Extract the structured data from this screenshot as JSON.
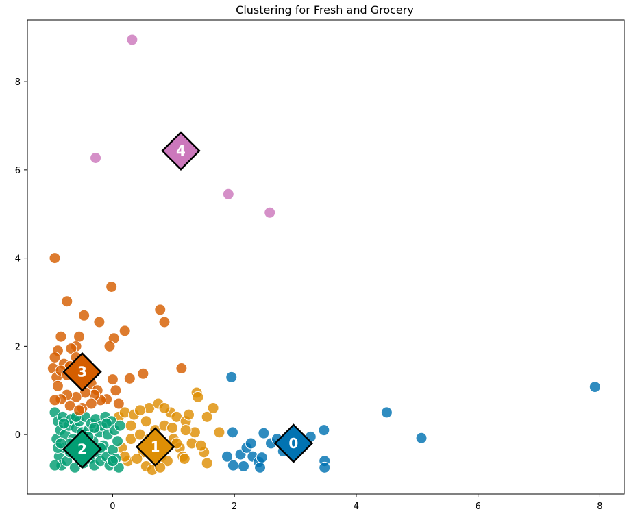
{
  "chart_data": {
    "type": "scatter",
    "title": "Clustering for Fresh and Grocery",
    "xlabel": "",
    "ylabel": "",
    "xlim": [
      -1.4,
      8.4
    ],
    "ylim": [
      -1.35,
      9.4
    ],
    "xticks": [
      0,
      2,
      4,
      6,
      8
    ],
    "yticks": [
      0,
      2,
      4,
      6,
      8
    ],
    "grid": false,
    "colors": [
      "#0173b2",
      "#de8f05",
      "#029e73",
      "#d55e00",
      "#cc78bc"
    ],
    "series": [
      {
        "points": [
          [
            1.95,
            1.3
          ],
          [
            1.97,
            0.05
          ],
          [
            1.88,
            -0.5
          ],
          [
            1.98,
            -0.7
          ],
          [
            2.1,
            -0.45
          ],
          [
            2.15,
            -0.72
          ],
          [
            2.2,
            -0.3
          ],
          [
            2.27,
            -0.2
          ],
          [
            2.3,
            -0.5
          ],
          [
            2.4,
            -0.62
          ],
          [
            2.42,
            -0.75
          ],
          [
            2.45,
            -0.52
          ],
          [
            2.48,
            0.03
          ],
          [
            2.6,
            -0.2
          ],
          [
            2.7,
            -0.1
          ],
          [
            2.8,
            -0.38
          ],
          [
            2.95,
            -0.3
          ],
          [
            3.1,
            -0.2
          ],
          [
            3.25,
            -0.05
          ],
          [
            3.47,
            0.1
          ],
          [
            3.48,
            -0.6
          ],
          [
            3.48,
            -0.75
          ],
          [
            4.5,
            0.5
          ],
          [
            5.07,
            -0.08
          ],
          [
            7.92,
            1.08
          ]
        ]
      },
      {
        "points": [
          [
            0.1,
            0.4
          ],
          [
            0.2,
            0.5
          ],
          [
            0.3,
            -0.1
          ],
          [
            0.35,
            0.45
          ],
          [
            0.45,
            0.0
          ],
          [
            0.5,
            -0.4
          ],
          [
            0.55,
            0.3
          ],
          [
            0.6,
            0.6
          ],
          [
            0.62,
            -0.2
          ],
          [
            0.7,
            0.1
          ],
          [
            0.75,
            0.7
          ],
          [
            0.8,
            -0.5
          ],
          [
            0.85,
            0.2
          ],
          [
            0.9,
            -0.6
          ],
          [
            0.95,
            0.5
          ],
          [
            1.0,
            -0.1
          ],
          [
            1.05,
            0.4
          ],
          [
            1.1,
            -0.3
          ],
          [
            1.15,
            -0.5
          ],
          [
            1.2,
            0.3
          ],
          [
            1.25,
            0.45
          ],
          [
            1.3,
            -0.2
          ],
          [
            1.35,
            0.05
          ],
          [
            1.38,
            0.95
          ],
          [
            1.4,
            0.85
          ],
          [
            1.5,
            -0.4
          ],
          [
            1.55,
            0.4
          ],
          [
            1.65,
            0.6
          ],
          [
            1.75,
            0.05
          ],
          [
            0.25,
            -0.6
          ],
          [
            0.4,
            -0.55
          ],
          [
            0.55,
            -0.72
          ],
          [
            0.65,
            -0.8
          ],
          [
            0.78,
            -0.75
          ],
          [
            0.88,
            -0.3
          ],
          [
            0.98,
            0.15
          ],
          [
            1.18,
            -0.55
          ],
          [
            1.45,
            -0.25
          ],
          [
            1.55,
            -0.65
          ],
          [
            0.15,
            -0.3
          ],
          [
            0.3,
            0.2
          ],
          [
            0.45,
            0.55
          ],
          [
            0.7,
            -0.4
          ],
          [
            1.05,
            -0.2
          ],
          [
            0.6,
            -0.1
          ],
          [
            0.85,
            0.6
          ],
          [
            1.2,
            0.1
          ],
          [
            0.2,
            -0.5
          ]
        ]
      },
      {
        "points": [
          [
            -0.95,
            0.5
          ],
          [
            -0.92,
            -0.1
          ],
          [
            -0.9,
            0.3
          ],
          [
            -0.88,
            -0.5
          ],
          [
            -0.86,
            0.1
          ],
          [
            -0.84,
            -0.7
          ],
          [
            -0.82,
            0.4
          ],
          [
            -0.8,
            -0.3
          ],
          [
            -0.78,
            0.0
          ],
          [
            -0.75,
            -0.6
          ],
          [
            -0.72,
            0.2
          ],
          [
            -0.7,
            -0.4
          ],
          [
            -0.68,
            0.35
          ],
          [
            -0.65,
            -0.1
          ],
          [
            -0.62,
            -0.75
          ],
          [
            -0.6,
            0.15
          ],
          [
            -0.58,
            -0.5
          ],
          [
            -0.55,
            0.3
          ],
          [
            -0.52,
            -0.2
          ],
          [
            -0.5,
            0.05
          ],
          [
            -0.48,
            -0.65
          ],
          [
            -0.45,
            0.4
          ],
          [
            -0.42,
            -0.35
          ],
          [
            -0.4,
            0.1
          ],
          [
            -0.38,
            -0.55
          ],
          [
            -0.35,
            0.25
          ],
          [
            -0.32,
            -0.15
          ],
          [
            -0.3,
            -0.7
          ],
          [
            -0.28,
            0.35
          ],
          [
            -0.25,
            -0.4
          ],
          [
            -0.22,
            0.05
          ],
          [
            -0.2,
            -0.6
          ],
          [
            -0.18,
            0.2
          ],
          [
            -0.15,
            -0.25
          ],
          [
            -0.12,
            0.4
          ],
          [
            -0.1,
            -0.5
          ],
          [
            -0.08,
            0.0
          ],
          [
            -0.05,
            -0.7
          ],
          [
            -0.02,
            0.3
          ],
          [
            0.0,
            -0.35
          ],
          [
            0.03,
            0.1
          ],
          [
            0.05,
            -0.55
          ],
          [
            0.08,
            -0.15
          ],
          [
            0.1,
            -0.75
          ],
          [
            0.12,
            0.2
          ],
          [
            -0.9,
            -0.3
          ],
          [
            -0.8,
            0.25
          ],
          [
            -0.7,
            -0.2
          ],
          [
            -0.6,
            0.4
          ],
          [
            -0.5,
            -0.45
          ],
          [
            -0.4,
            -0.05
          ],
          [
            -0.3,
            0.15
          ],
          [
            -0.2,
            -0.3
          ],
          [
            -0.1,
            0.25
          ],
          [
            0.0,
            -0.6
          ],
          [
            -0.95,
            -0.7
          ],
          [
            -0.85,
            -0.2
          ]
        ]
      },
      {
        "points": [
          [
            -0.95,
            4.0
          ],
          [
            -0.02,
            3.35
          ],
          [
            -0.75,
            3.02
          ],
          [
            0.78,
            2.83
          ],
          [
            0.85,
            2.55
          ],
          [
            -0.47,
            2.7
          ],
          [
            -0.22,
            2.55
          ],
          [
            0.2,
            2.35
          ],
          [
            -0.85,
            2.22
          ],
          [
            -0.55,
            2.22
          ],
          [
            0.02,
            2.18
          ],
          [
            -0.05,
            2.0
          ],
          [
            -0.6,
            2.0
          ],
          [
            -0.68,
            1.95
          ],
          [
            -0.9,
            1.9
          ],
          [
            -0.95,
            1.75
          ],
          [
            -0.8,
            1.6
          ],
          [
            -0.7,
            1.55
          ],
          [
            -0.6,
            1.75
          ],
          [
            -0.5,
            1.55
          ],
          [
            -0.98,
            1.5
          ],
          [
            -0.92,
            1.3
          ],
          [
            -0.85,
            1.45
          ],
          [
            -0.75,
            1.35
          ],
          [
            -0.65,
            1.4
          ],
          [
            -0.4,
            1.25
          ],
          [
            -0.35,
            1.15
          ],
          [
            -0.25,
            1.0
          ],
          [
            0.0,
            1.25
          ],
          [
            0.05,
            1.0
          ],
          [
            0.28,
            1.27
          ],
          [
            0.5,
            1.38
          ],
          [
            1.13,
            1.5
          ],
          [
            -0.1,
            0.8
          ],
          [
            -0.2,
            0.78
          ],
          [
            -0.3,
            0.9
          ],
          [
            -0.45,
            0.95
          ],
          [
            -0.6,
            0.85
          ],
          [
            -0.75,
            0.9
          ],
          [
            -0.85,
            0.8
          ],
          [
            -0.95,
            0.78
          ],
          [
            -0.9,
            1.1
          ],
          [
            -0.5,
            0.6
          ],
          [
            -0.7,
            0.65
          ],
          [
            -0.55,
            0.55
          ],
          [
            0.1,
            0.7
          ],
          [
            -0.35,
            0.7
          ]
        ]
      },
      {
        "points": [
          [
            0.32,
            8.95
          ],
          [
            -0.28,
            6.27
          ],
          [
            1.9,
            5.45
          ],
          [
            2.58,
            5.03
          ]
        ]
      }
    ],
    "centroids": [
      {
        "label": "0",
        "x": 2.97,
        "y": -0.2
      },
      {
        "label": "1",
        "x": 0.7,
        "y": -0.28
      },
      {
        "label": "2",
        "x": -0.5,
        "y": -0.33
      },
      {
        "label": "3",
        "x": -0.5,
        "y": 1.42
      },
      {
        "label": "4",
        "x": 1.12,
        "y": 6.43
      }
    ]
  }
}
